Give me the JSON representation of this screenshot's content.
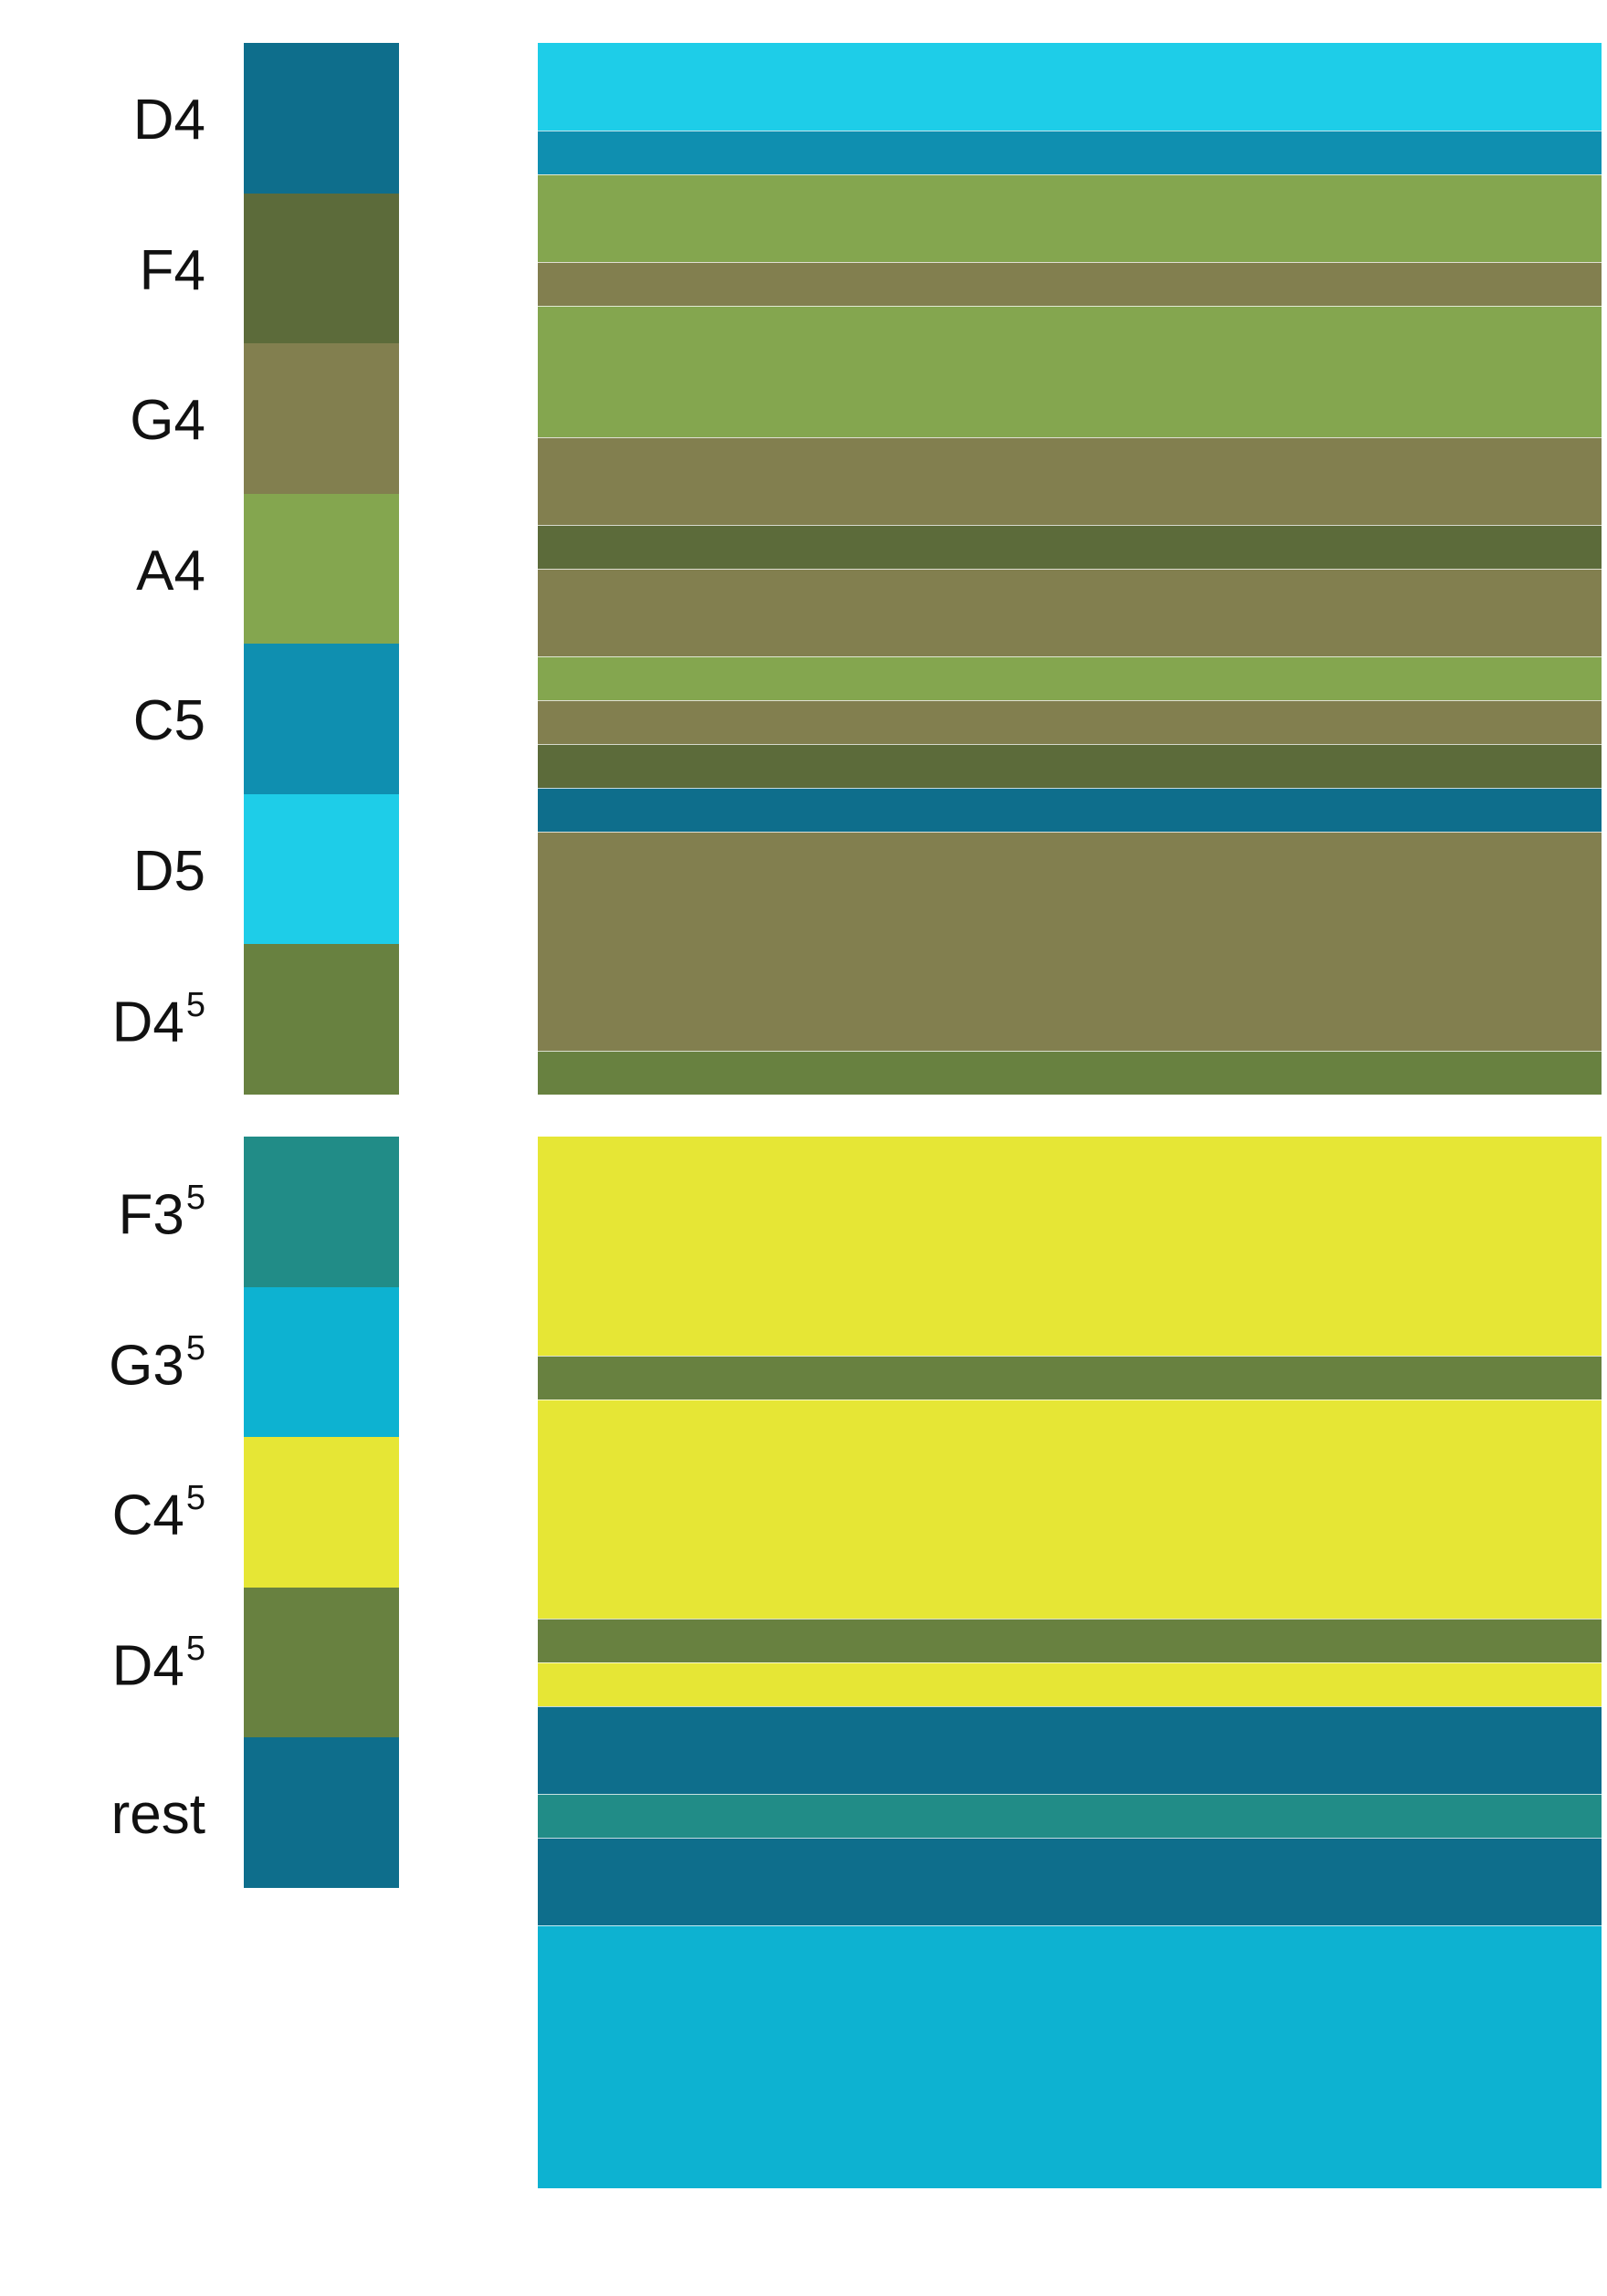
{
  "colors": {
    "D4": "#0e6e8c",
    "F4": "#5c6b3a",
    "G4": "#827f4f",
    "A4": "#84a64f",
    "C5": "#0f8fb0",
    "D5": "#1ecde8",
    "D4_5": "#688140",
    "F3_5": "#218c87",
    "G3_5": "#0db2d1",
    "C4_5": "#e6e635",
    "rest": "#0e6e8c"
  },
  "legend_top": [
    {
      "key": "D4",
      "label": "D4",
      "sup": ""
    },
    {
      "key": "F4",
      "label": "F4",
      "sup": ""
    },
    {
      "key": "G4",
      "label": "G4",
      "sup": ""
    },
    {
      "key": "A4",
      "label": "A4",
      "sup": ""
    },
    {
      "key": "C5",
      "label": "C5",
      "sup": ""
    },
    {
      "key": "D5",
      "label": "D5",
      "sup": ""
    },
    {
      "key": "D4_5",
      "label": "D4",
      "sup": "5"
    }
  ],
  "legend_bottom": [
    {
      "key": "F3_5",
      "label": "F3",
      "sup": "5"
    },
    {
      "key": "G3_5",
      "label": "G3",
      "sup": "5"
    },
    {
      "key": "C4_5",
      "label": "C4",
      "sup": "5"
    },
    {
      "key": "D4_5",
      "label": "D4",
      "sup": "5"
    },
    {
      "key": "rest",
      "label": "rest",
      "sup": ""
    }
  ],
  "sequence_top": [
    {
      "key": "D5",
      "beats": 2
    },
    {
      "key": "C5",
      "beats": 1
    },
    {
      "key": "A4",
      "beats": 2
    },
    {
      "key": "G4",
      "beats": 1
    },
    {
      "key": "A4",
      "beats": 3
    },
    {
      "key": "G4",
      "beats": 2
    },
    {
      "key": "F4",
      "beats": 1
    },
    {
      "key": "G4",
      "beats": 2
    },
    {
      "key": "A4",
      "beats": 1
    },
    {
      "key": "G4",
      "beats": 1
    },
    {
      "key": "F4",
      "beats": 1
    },
    {
      "key": "D4",
      "beats": 1
    },
    {
      "key": "G4",
      "beats": 5
    },
    {
      "key": "D4_5",
      "beats": 1
    }
  ],
  "sequence_bottom": [
    {
      "key": "C4_5",
      "beats": 5
    },
    {
      "key": "D4_5",
      "beats": 1
    },
    {
      "key": "C4_5",
      "beats": 5
    },
    {
      "key": "D4_5",
      "beats": 1
    },
    {
      "key": "C4_5",
      "beats": 1
    },
    {
      "key": "rest",
      "beats": 2
    },
    {
      "key": "F3_5",
      "beats": 1
    },
    {
      "key": "rest",
      "beats": 2
    },
    {
      "key": "G3_5",
      "beats": 6
    }
  ]
}
